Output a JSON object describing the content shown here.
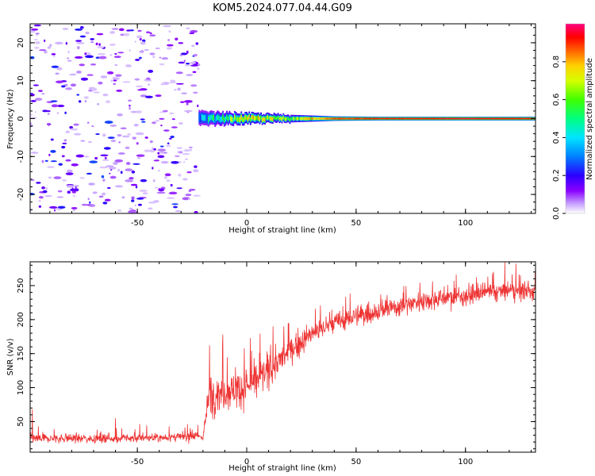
{
  "figure_title": "KOM5.2024.077.04.44.G09",
  "chart_data": [
    {
      "type": "heatmap",
      "title": "KOM5.2024.077.04.44.G09",
      "xlabel": "Height of straight line (km)",
      "ylabel": "Frequency (Hz)",
      "xlim": [
        -99,
        132
      ],
      "ylim": [
        -25,
        25
      ],
      "xticks": [
        -50,
        0,
        50,
        100
      ],
      "yticks": [
        -20,
        -10,
        0,
        10,
        20
      ],
      "grid": false,
      "colorbar": {
        "label": "Normalized spectral amplitude",
        "ticks": [
          0.0,
          0.2,
          0.4,
          0.6,
          0.8
        ],
        "range": [
          0,
          1
        ],
        "colors": [
          "#ffffff",
          "#c7a4ff",
          "#8a00ff",
          "#2a00ff",
          "#0080ff",
          "#00e5ff",
          "#00ff80",
          "#40ff00",
          "#d6ff00",
          "#ffd000",
          "#ff6000",
          "#ff0000",
          "#ff0080"
        ]
      },
      "regions": [
        {
          "name": "noise",
          "x_range": [
            -99,
            -22
          ],
          "y_range": [
            -25,
            25
          ],
          "amplitude_range": [
            0.05,
            0.3
          ]
        },
        {
          "name": "signal",
          "x_range": [
            -22,
            132
          ],
          "y_center": 0,
          "amplitude_range": [
            0.3,
            1.0
          ]
        }
      ],
      "signal_track": [
        {
          "x": -22,
          "half_width_hz": 2.0,
          "amplitude": 0.35
        },
        {
          "x": -15,
          "half_width_hz": 1.8,
          "amplitude": 0.45
        },
        {
          "x": 0,
          "half_width_hz": 1.5,
          "amplitude": 0.7
        },
        {
          "x": 20,
          "half_width_hz": 1.0,
          "amplitude": 0.6
        },
        {
          "x": 40,
          "half_width_hz": 0.6,
          "amplitude": 0.85
        },
        {
          "x": 60,
          "half_width_hz": 0.5,
          "amplitude": 0.9
        },
        {
          "x": 80,
          "half_width_hz": 0.5,
          "amplitude": 0.92
        },
        {
          "x": 100,
          "half_width_hz": 0.5,
          "amplitude": 0.95
        },
        {
          "x": 132,
          "half_width_hz": 0.5,
          "amplitude": 0.9
        }
      ]
    },
    {
      "type": "line",
      "xlabel": "Height of straight line (km)",
      "ylabel": "SNR (v/v)",
      "xlim": [
        -99,
        132
      ],
      "ylim": [
        5,
        285
      ],
      "xticks": [
        -50,
        0,
        50,
        100
      ],
      "yticks": [
        50,
        100,
        150,
        200,
        250
      ],
      "grid": false,
      "color": "#ee3333",
      "trend": [
        {
          "x": -99,
          "y": 25
        },
        {
          "x": -60,
          "y": 25
        },
        {
          "x": -20,
          "y": 28
        },
        {
          "x": -17,
          "y": 90
        },
        {
          "x": -10,
          "y": 95
        },
        {
          "x": 0,
          "y": 100
        },
        {
          "x": 10,
          "y": 125
        },
        {
          "x": 20,
          "y": 155
        },
        {
          "x": 30,
          "y": 180
        },
        {
          "x": 40,
          "y": 195
        },
        {
          "x": 50,
          "y": 205
        },
        {
          "x": 60,
          "y": 212
        },
        {
          "x": 70,
          "y": 220
        },
        {
          "x": 80,
          "y": 228
        },
        {
          "x": 90,
          "y": 232
        },
        {
          "x": 100,
          "y": 235
        },
        {
          "x": 110,
          "y": 240
        },
        {
          "x": 120,
          "y": 242
        },
        {
          "x": 132,
          "y": 240
        }
      ],
      "noise_amplitude": [
        {
          "x": -99,
          "amp": 12
        },
        {
          "x": -20,
          "amp": 12
        },
        {
          "x": -17,
          "amp": 55
        },
        {
          "x": 10,
          "amp": 45
        },
        {
          "x": 30,
          "amp": 30
        },
        {
          "x": 132,
          "amp": 25
        }
      ],
      "peaks": [
        {
          "x": -98,
          "y": 68
        },
        {
          "x": -60,
          "y": 55
        },
        {
          "x": -17,
          "y": 162
        },
        {
          "x": -11,
          "y": 178
        },
        {
          "x": 12,
          "y": 190
        },
        {
          "x": 17,
          "y": 190
        },
        {
          "x": 118,
          "y": 285
        },
        {
          "x": 125,
          "y": 265
        }
      ]
    }
  ]
}
